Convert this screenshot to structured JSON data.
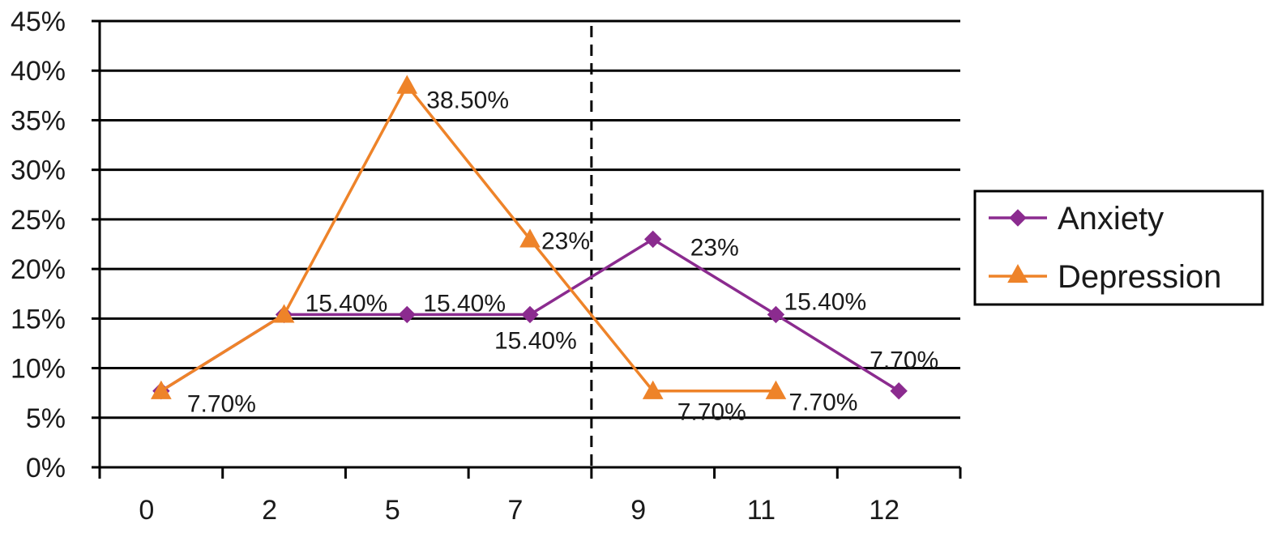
{
  "chart_data": {
    "type": "line",
    "categories": [
      "0",
      "2",
      "5",
      "7",
      "9",
      "11",
      "12"
    ],
    "y_ticks": [
      "0%",
      "5%",
      "10%",
      "15%",
      "20%",
      "25%",
      "30%",
      "35%",
      "40%",
      "45%"
    ],
    "ylim": [
      0,
      45
    ],
    "grid": "horizontal",
    "vertical_marker": "dashed line between 7 and 9",
    "legend_position": "right",
    "series": [
      {
        "name": "Anxiety",
        "color": "#8b2b8f",
        "marker": "diamond",
        "values": [
          7.7,
          15.4,
          15.4,
          15.4,
          23,
          15.4,
          7.7
        ],
        "labels": [
          "",
          "15.40%",
          "15.40%",
          "15.40%",
          "23%",
          "15.40%",
          "7.70%"
        ]
      },
      {
        "name": "Depression",
        "color": "#ee8329",
        "marker": "triangle",
        "values": [
          7.7,
          15.4,
          38.5,
          23,
          7.7,
          7.7,
          null
        ],
        "labels": [
          "7.70%",
          "",
          "38.50%",
          "23%",
          "7.70%",
          "7.70%",
          ""
        ]
      }
    ]
  }
}
